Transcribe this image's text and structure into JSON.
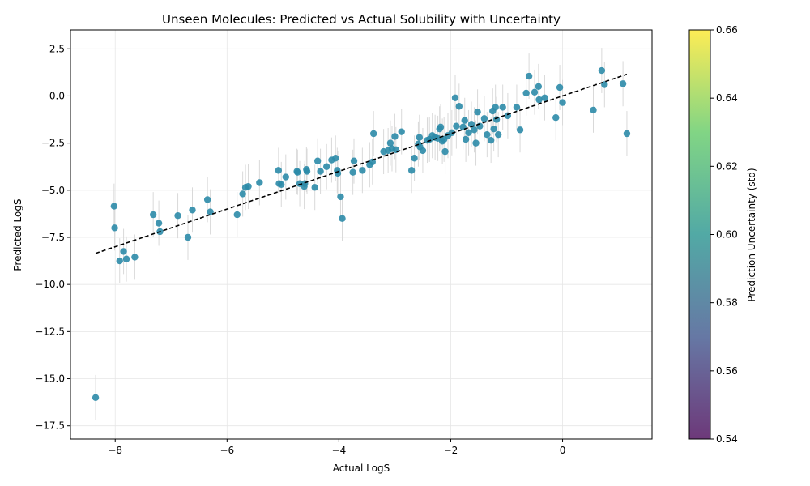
{
  "chart_data": {
    "type": "scatter",
    "title": "Unseen Molecules: Predicted vs Actual Solubility with Uncertainty",
    "xlabel": "Actual LogS",
    "ylabel": "Predicted LogS",
    "xlim": [
      -8.8,
      1.6
    ],
    "ylim": [
      -18.2,
      3.5
    ],
    "x_ticks": [
      -8,
      -6,
      -4,
      -2,
      0
    ],
    "x_tick_labels": [
      "−8",
      "−6",
      "−4",
      "−2",
      "0"
    ],
    "y_ticks": [
      2.5,
      0,
      -2.5,
      -5,
      -7.5,
      -10,
      -12.5,
      -15,
      -17.5
    ],
    "y_tick_labels": [
      "2.5",
      "0.0",
      "−2.5",
      "−5.0",
      "−7.5",
      "−10.0",
      "−12.5",
      "−15.0",
      "−17.5"
    ],
    "grid": true,
    "point_color": "#2c8ba8",
    "errorbar_color": "#d9d9d9",
    "uncertainty_std": 1.2,
    "reference_line": {
      "style": "dashed",
      "color": "#000000",
      "from": [
        -8.35,
        -8.35
      ],
      "to": [
        1.15,
        1.15
      ]
    },
    "colorbar": {
      "label": "Prediction Uncertainty (std)",
      "range": [
        0.54,
        0.66
      ],
      "ticks": [
        0.54,
        0.56,
        0.58,
        0.6,
        0.62,
        0.64,
        0.66
      ],
      "tick_labels": [
        "0.54",
        "0.56",
        "0.58",
        "0.60",
        "0.62",
        "0.64",
        "0.66"
      ],
      "colormap": "viridis"
    },
    "points": [
      [
        -8.35,
        -16.0
      ],
      [
        -8.02,
        -5.85
      ],
      [
        -8.01,
        -7.0
      ],
      [
        -7.92,
        -8.75
      ],
      [
        -7.85,
        -8.25
      ],
      [
        -7.8,
        -8.65
      ],
      [
        -7.65,
        -8.55
      ],
      [
        -7.32,
        -6.3
      ],
      [
        -7.22,
        -6.75
      ],
      [
        -7.2,
        -7.2
      ],
      [
        -6.88,
        -6.35
      ],
      [
        -6.7,
        -7.5
      ],
      [
        -6.62,
        -6.05
      ],
      [
        -6.35,
        -5.5
      ],
      [
        -6.3,
        -6.15
      ],
      [
        -5.82,
        -6.3
      ],
      [
        -5.72,
        -5.2
      ],
      [
        -5.67,
        -4.85
      ],
      [
        -5.62,
        -4.8
      ],
      [
        -5.42,
        -4.6
      ],
      [
        -5.08,
        -3.95
      ],
      [
        -5.07,
        -4.65
      ],
      [
        -5.03,
        -4.7
      ],
      [
        -4.95,
        -4.3
      ],
      [
        -4.75,
        -4.0
      ],
      [
        -4.74,
        -4.05
      ],
      [
        -4.7,
        -4.65
      ],
      [
        -4.62,
        -4.8
      ],
      [
        -4.61,
        -4.65
      ],
      [
        -4.58,
        -3.9
      ],
      [
        -4.57,
        -4.0
      ],
      [
        -4.43,
        -4.85
      ],
      [
        -4.38,
        -3.45
      ],
      [
        -4.33,
        -4.0
      ],
      [
        -4.22,
        -3.75
      ],
      [
        -4.13,
        -3.4
      ],
      [
        -4.06,
        -3.3
      ],
      [
        -4.03,
        -3.95
      ],
      [
        -4.02,
        -4.1
      ],
      [
        -3.97,
        -5.35
      ],
      [
        -3.94,
        -6.5
      ],
      [
        -3.75,
        -4.05
      ],
      [
        -3.73,
        -3.45
      ],
      [
        -3.58,
        -3.95
      ],
      [
        -3.45,
        -3.65
      ],
      [
        -3.4,
        -3.5
      ],
      [
        -3.38,
        -2.0
      ],
      [
        -3.2,
        -2.95
      ],
      [
        -3.12,
        -2.9
      ],
      [
        -3.08,
        -2.5
      ],
      [
        -3.05,
        -2.8
      ],
      [
        -3.0,
        -2.15
      ],
      [
        -2.98,
        -2.85
      ],
      [
        -2.88,
        -1.9
      ],
      [
        -2.7,
        -3.95
      ],
      [
        -2.65,
        -3.3
      ],
      [
        -2.58,
        -2.55
      ],
      [
        -2.56,
        -2.2
      ],
      [
        -2.55,
        -2.7
      ],
      [
        -2.5,
        -2.9
      ],
      [
        -2.42,
        -2.35
      ],
      [
        -2.38,
        -2.3
      ],
      [
        -2.33,
        -2.1
      ],
      [
        -2.28,
        -2.2
      ],
      [
        -2.23,
        -2.25
      ],
      [
        -2.2,
        -1.75
      ],
      [
        -2.18,
        -1.65
      ],
      [
        -2.15,
        -2.4
      ],
      [
        -2.12,
        -2.3
      ],
      [
        -2.1,
        -2.95
      ],
      [
        -2.05,
        -2.1
      ],
      [
        -1.98,
        -1.95
      ],
      [
        -1.92,
        -0.1
      ],
      [
        -1.9,
        -1.6
      ],
      [
        -1.85,
        -0.55
      ],
      [
        -1.78,
        -1.65
      ],
      [
        -1.75,
        -1.3
      ],
      [
        -1.73,
        -2.3
      ],
      [
        -1.68,
        -1.95
      ],
      [
        -1.63,
        -1.5
      ],
      [
        -1.58,
        -1.8
      ],
      [
        -1.55,
        -2.5
      ],
      [
        -1.52,
        -0.85
      ],
      [
        -1.48,
        -1.6
      ],
      [
        -1.4,
        -1.2
      ],
      [
        -1.35,
        -2.05
      ],
      [
        -1.28,
        -2.35
      ],
      [
        -1.25,
        -0.8
      ],
      [
        -1.23,
        -1.75
      ],
      [
        -1.2,
        -0.6
      ],
      [
        -1.18,
        -1.25
      ],
      [
        -1.15,
        -2.05
      ],
      [
        -1.07,
        -0.6
      ],
      [
        -0.98,
        -1.05
      ],
      [
        -0.82,
        -0.6
      ],
      [
        -0.76,
        -1.8
      ],
      [
        -0.65,
        0.15
      ],
      [
        -0.6,
        1.05
      ],
      [
        -0.5,
        0.2
      ],
      [
        -0.43,
        0.5
      ],
      [
        -0.42,
        -0.2
      ],
      [
        -0.32,
        -0.1
      ],
      [
        -0.12,
        -1.15
      ],
      [
        -0.05,
        0.45
      ],
      [
        0.0,
        -0.35
      ],
      [
        0.55,
        -0.75
      ],
      [
        0.7,
        1.35
      ],
      [
        0.75,
        0.6
      ],
      [
        1.08,
        0.65
      ],
      [
        1.15,
        -2.0
      ]
    ]
  }
}
